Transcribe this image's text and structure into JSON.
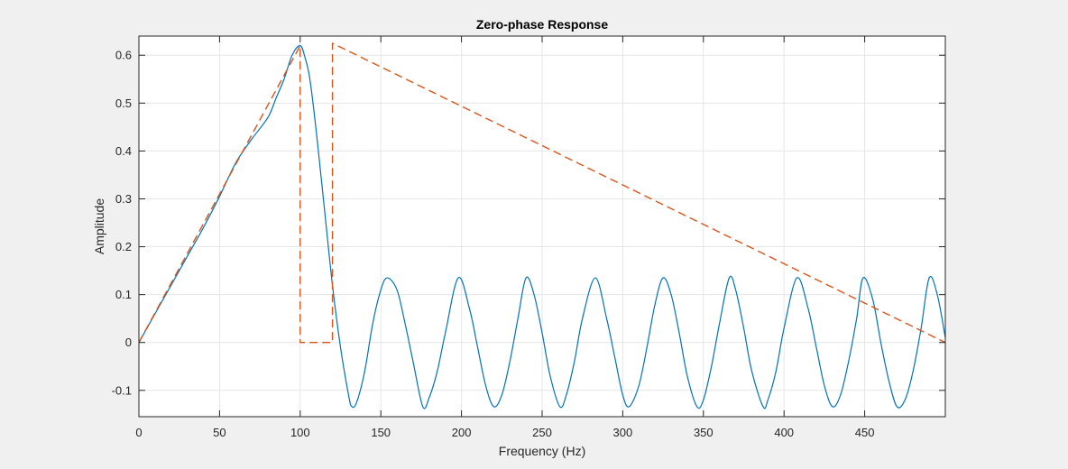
{
  "chart_data": {
    "type": "line",
    "title": "Zero-phase Response",
    "xlabel": "Frequency (Hz)",
    "ylabel": "Amplitude",
    "xlim": [
      0,
      500
    ],
    "ylim": [
      -0.155,
      0.64
    ],
    "grid": true,
    "x_ticks": [
      0,
      50,
      100,
      150,
      200,
      250,
      300,
      350,
      400,
      450
    ],
    "y_ticks": [
      -0.1,
      0,
      0.1,
      0.2,
      0.3,
      0.4,
      0.5,
      0.6
    ],
    "y_tick_labels": [
      "-0.1",
      "0",
      "0.1",
      "0.2",
      "0.3",
      "0.4",
      "0.5",
      "0.6"
    ],
    "colors": {
      "response": "#0072bd",
      "ideal": "#d95319",
      "grid": "#e6e6e6",
      "axes_bg": "#ffffff",
      "figure_bg": "#f0f0f0"
    },
    "series": [
      {
        "style": "solid",
        "color": "#0072bd",
        "x": [
          0,
          10,
          20,
          30,
          40,
          50,
          60,
          70,
          80,
          85,
          90,
          95,
          100,
          103,
          106,
          110,
          115,
          120,
          125,
          130,
          132,
          135,
          140,
          145,
          150,
          154,
          160,
          165,
          170,
          176,
          180,
          185,
          190,
          198,
          205,
          210,
          215,
          220,
          225,
          230,
          235,
          240,
          245,
          250,
          255,
          261,
          265,
          270,
          275,
          283,
          290,
          295,
          300,
          304,
          310,
          315,
          320,
          325,
          330,
          335,
          340,
          346,
          350,
          355,
          360,
          366,
          370,
          375,
          380,
          387,
          390,
          395,
          400,
          408,
          415,
          420,
          425,
          430,
          435,
          440,
          445,
          449,
          455,
          460,
          465,
          470,
          475,
          480,
          485,
          490,
          495,
          500
        ],
        "y": [
          0,
          0.06,
          0.12,
          0.18,
          0.24,
          0.305,
          0.375,
          0.425,
          0.47,
          0.51,
          0.55,
          0.6,
          0.62,
          0.595,
          0.55,
          0.44,
          0.28,
          0.12,
          -0.01,
          -0.11,
          -0.134,
          -0.125,
          -0.06,
          0.04,
          0.11,
          0.135,
          0.11,
          0.04,
          -0.04,
          -0.134,
          -0.115,
          -0.06,
          0.02,
          0.135,
          0.07,
          -0.01,
          -0.09,
          -0.134,
          -0.11,
          -0.04,
          0.05,
          0.135,
          0.1,
          0.02,
          -0.07,
          -0.134,
          -0.11,
          -0.04,
          0.05,
          0.135,
          0.05,
          -0.03,
          -0.11,
          -0.134,
          -0.09,
          -0.01,
          0.08,
          0.135,
          0.1,
          0.02,
          -0.07,
          -0.134,
          -0.12,
          -0.05,
          0.04,
          0.135,
          0.11,
          0.03,
          -0.06,
          -0.134,
          -0.12,
          -0.06,
          0.03,
          0.135,
          0.07,
          -0.01,
          -0.09,
          -0.134,
          -0.11,
          -0.04,
          0.05,
          0.135,
          0.09,
          0.0,
          -0.08,
          -0.134,
          -0.12,
          -0.06,
          0.03,
          0.135,
          0.1,
          0.01
        ]
      },
      {
        "style": "dashed",
        "color": "#d95319",
        "x": [
          0,
          100,
          100,
          120,
          120,
          500
        ],
        "y": [
          0,
          0.62,
          0,
          0,
          0.625,
          0
        ]
      }
    ]
  }
}
